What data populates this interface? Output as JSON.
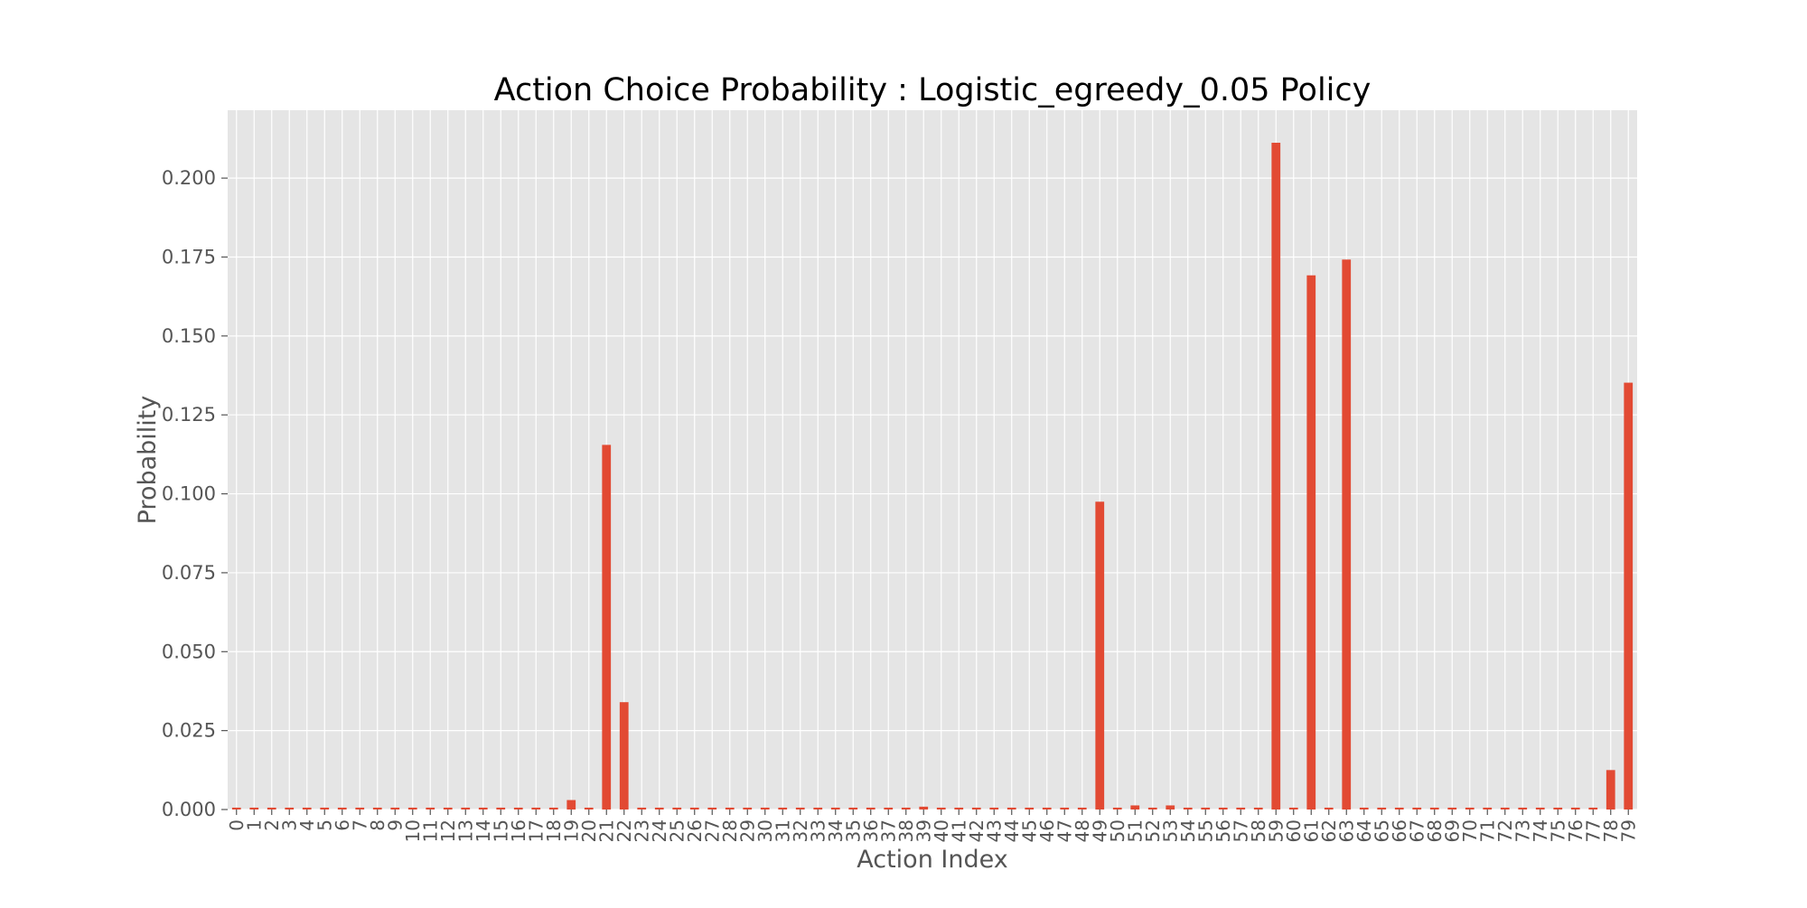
{
  "chart_data": {
    "type": "bar",
    "title": "Action Choice Probability : Logistic_egreedy_0.05 Policy",
    "xlabel": "Action Index",
    "ylabel": "Probability",
    "ylim": [
      0,
      0.2215
    ],
    "yticks": [
      "0.000",
      "0.025",
      "0.050",
      "0.075",
      "0.100",
      "0.125",
      "0.150",
      "0.175",
      "0.200"
    ],
    "ytick_values": [
      0,
      0.025,
      0.05,
      0.075,
      0.1,
      0.125,
      0.15,
      0.175,
      0.2
    ],
    "grid": true,
    "legend": "none",
    "bar_color": "#E24A33",
    "plot_background": "#E5E5E5",
    "grid_color": "#FFFFFF",
    "categories": [
      "0",
      "1",
      "2",
      "3",
      "4",
      "5",
      "6",
      "7",
      "8",
      "9",
      "10",
      "11",
      "12",
      "13",
      "14",
      "15",
      "16",
      "17",
      "18",
      "19",
      "20",
      "21",
      "22",
      "23",
      "24",
      "25",
      "26",
      "27",
      "28",
      "29",
      "30",
      "31",
      "32",
      "33",
      "34",
      "35",
      "36",
      "37",
      "38",
      "39",
      "40",
      "41",
      "42",
      "43",
      "44",
      "45",
      "46",
      "47",
      "48",
      "49",
      "50",
      "51",
      "52",
      "53",
      "54",
      "55",
      "56",
      "57",
      "58",
      "59",
      "60",
      "61",
      "62",
      "63",
      "64",
      "65",
      "66",
      "67",
      "68",
      "69",
      "70",
      "71",
      "72",
      "73",
      "74",
      "75",
      "76",
      "77",
      "78",
      "79"
    ],
    "values": [
      0.0006,
      0.0006,
      0.0006,
      0.0006,
      0.0006,
      0.0006,
      0.0006,
      0.0006,
      0.0006,
      0.0006,
      0.0006,
      0.0006,
      0.0006,
      0.0006,
      0.0006,
      0.0006,
      0.0006,
      0.0006,
      0.0006,
      0.003,
      0.0006,
      0.1155,
      0.034,
      0.0006,
      0.0006,
      0.0006,
      0.0006,
      0.0006,
      0.0006,
      0.0006,
      0.0006,
      0.0006,
      0.0006,
      0.0006,
      0.0006,
      0.0006,
      0.0006,
      0.0006,
      0.0006,
      0.0009,
      0.0006,
      0.0006,
      0.0006,
      0.0006,
      0.0006,
      0.0006,
      0.0006,
      0.0006,
      0.0006,
      0.0975,
      0.0006,
      0.0013,
      0.0006,
      0.0013,
      0.0006,
      0.0006,
      0.0006,
      0.0006,
      0.0006,
      0.2112,
      0.0006,
      0.1692,
      0.0006,
      0.1742,
      0.0006,
      0.0006,
      0.0006,
      0.0006,
      0.0006,
      0.0006,
      0.0006,
      0.0006,
      0.0006,
      0.0006,
      0.0006,
      0.0006,
      0.0006,
      0.0006,
      0.0125,
      0.1352
    ]
  }
}
